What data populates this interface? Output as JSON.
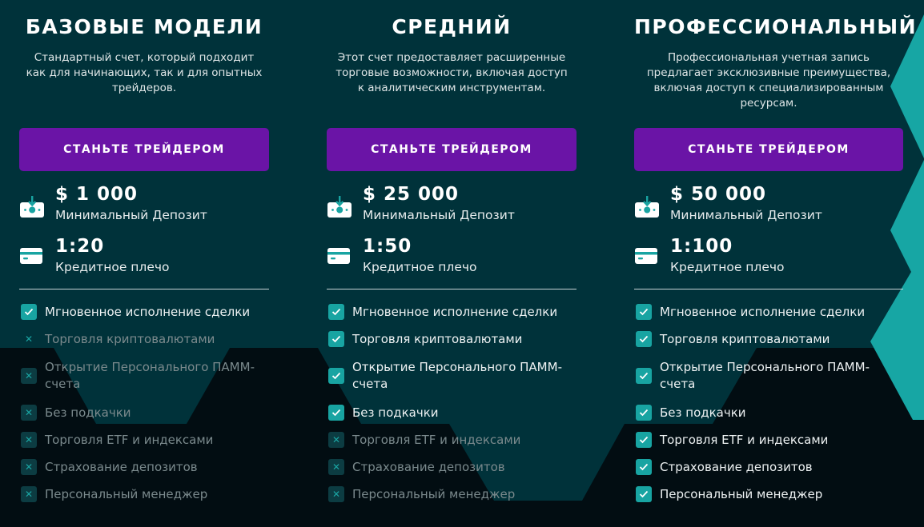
{
  "colors": {
    "background_top": "#00323a",
    "background_bottom": "#020d12",
    "accent": "#18a4a2",
    "button": "#6a14a6",
    "disabled_text": "#7b8a8d"
  },
  "plans": [
    {
      "title": "БАЗОВЫЕ МОДЕЛИ",
      "description": "Стандартный счет, который подходит как для начинающих, так и для опытных трейдеров.",
      "button": "СТАНЬТЕ ТРЕЙДЕРОМ",
      "deposit": {
        "icon": "deposit-icon",
        "value": "$ 1 000",
        "label": "Минимальный Депозит"
      },
      "leverage": {
        "icon": "credit-card-icon",
        "value": "1:20",
        "label": "Кредитное плечо"
      },
      "features": [
        {
          "text": "Мгновенное исполнение сделки",
          "included": true
        },
        {
          "text": "Торговля криптовалютами",
          "included": false
        },
        {
          "text": "Открытие Персонального ПАММ-счета",
          "included": false
        },
        {
          "text": "Без подкачки",
          "included": false
        },
        {
          "text": "Торговля ETF и индексами",
          "included": false
        },
        {
          "text": "Страхование депозитов",
          "included": false
        },
        {
          "text": "Персональный менеджер",
          "included": false
        }
      ]
    },
    {
      "title": "СРЕДНИЙ",
      "description": "Этот счет предоставляет расширенные торговые возможности, включая доступ к аналитическим инструментам.",
      "button": "СТАНЬТЕ ТРЕЙДЕРОМ",
      "deposit": {
        "icon": "deposit-icon",
        "value": "$ 25 000",
        "label": "Минимальный Депозит"
      },
      "leverage": {
        "icon": "credit-card-icon",
        "value": "1:50",
        "label": "Кредитное плечо"
      },
      "features": [
        {
          "text": "Мгновенное исполнение сделки",
          "included": true
        },
        {
          "text": "Торговля криптовалютами",
          "included": true
        },
        {
          "text": "Открытие Персонального ПАММ-счета",
          "included": true
        },
        {
          "text": "Без подкачки",
          "included": true
        },
        {
          "text": "Торговля ETF и индексами",
          "included": false
        },
        {
          "text": "Страхование депозитов",
          "included": false
        },
        {
          "text": "Персональный менеджер",
          "included": false
        }
      ]
    },
    {
      "title": "ПРОФЕССИОНАЛЬНЫЙ",
      "description": "Профессиональная учетная запись предлагает эксклюзивные преимущества, включая доступ к специализированным ресурсам.",
      "button": "СТАНЬТЕ ТРЕЙДЕРОМ",
      "deposit": {
        "icon": "deposit-icon",
        "value": "$ 50 000",
        "label": "Минимальный Депозит"
      },
      "leverage": {
        "icon": "credit-card-icon",
        "value": "1:100",
        "label": "Кредитное плечо"
      },
      "features": [
        {
          "text": "Мгновенное исполнение сделки",
          "included": true
        },
        {
          "text": "Торговля криптовалютами",
          "included": true
        },
        {
          "text": "Открытие Персонального ПАММ-счета",
          "included": true
        },
        {
          "text": "Без подкачки",
          "included": true
        },
        {
          "text": "Торговля ETF и индексами",
          "included": true
        },
        {
          "text": "Страхование депозитов",
          "included": true
        },
        {
          "text": "Персональный менеджер",
          "included": true
        }
      ]
    }
  ]
}
